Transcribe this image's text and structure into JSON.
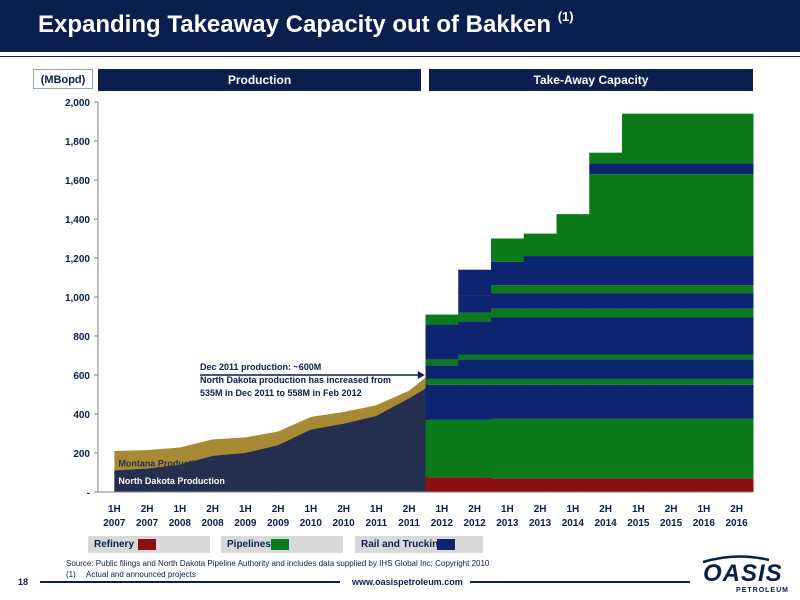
{
  "slide": {
    "title": "Expanding Takeaway Capacity out of Bakken",
    "title_note": "(1)",
    "page_number": "18",
    "website": "www.oasispetroleum.com",
    "source": "Source:  Public filings and North Dakota Pipeline Authority and includes data supplied by IHS Global Inc; Copyright 2010",
    "footnote_num": "(1)",
    "footnote_text": "Actual and announced projects",
    "logo_text": "OASIS",
    "logo_sub": "PETROLEUM"
  },
  "colors": {
    "navy": "#0b1f4e",
    "production_navy": "#242f4f",
    "montana_gold": "#a88a34",
    "refinery": "#8b0f13",
    "pipelines": "#0a7a1a",
    "rail": "#0d2470"
  },
  "chart_data": {
    "type": "area",
    "unit_label": "(MBopd)",
    "section_labels": [
      "Production",
      "Take-Away Capacity"
    ],
    "ylim": [
      0,
      2000
    ],
    "yticks": [
      0,
      200,
      400,
      600,
      800,
      1000,
      1200,
      1400,
      1600,
      1800,
      2000
    ],
    "ytick_labels": [
      "-",
      "200",
      "400",
      "600",
      "800",
      "1,000",
      "1,200",
      "1,400",
      "1,600",
      "1,800",
      "2,000"
    ],
    "categories": [
      [
        "1H",
        "2007"
      ],
      [
        "2H",
        "2007"
      ],
      [
        "1H",
        "2008"
      ],
      [
        "2H",
        "2008"
      ],
      [
        "1H",
        "2009"
      ],
      [
        "2H",
        "2009"
      ],
      [
        "1H",
        "2010"
      ],
      [
        "2H",
        "2010"
      ],
      [
        "1H",
        "2011"
      ],
      [
        "2H",
        "2011"
      ],
      [
        "1H",
        "2012"
      ],
      [
        "2H",
        "2012"
      ],
      [
        "1H",
        "2013"
      ],
      [
        "2H",
        "2013"
      ],
      [
        "1H",
        "2014"
      ],
      [
        "2H",
        "2014"
      ],
      [
        "1H",
        "2015"
      ],
      [
        "2H",
        "2015"
      ],
      [
        "1H",
        "2016"
      ],
      [
        "2H",
        "2016"
      ]
    ],
    "production": {
      "x": [
        0,
        1,
        2,
        3,
        4,
        5,
        6,
        7,
        8,
        9,
        9.6
      ],
      "north_dakota": [
        110,
        120,
        140,
        185,
        200,
        240,
        320,
        350,
        390,
        480,
        540
      ],
      "total_with_montana": [
        210,
        215,
        228,
        270,
        280,
        310,
        385,
        410,
        445,
        520,
        600
      ],
      "north_dakota_label": "North Dakota Production",
      "montana_label": "Montana Production"
    },
    "capacity_steps": [
      {
        "category": "1H 2012",
        "layers": [
          {
            "type": "refinery",
            "h": 75
          },
          {
            "type": "pipelines",
            "h": 295
          },
          {
            "type": "rail",
            "h": 180
          },
          {
            "type": "pipelines",
            "h": 30
          },
          {
            "type": "rail",
            "h": 70
          },
          {
            "type": "pipelines",
            "h": 30
          },
          {
            "type": "rail",
            "h": 180
          },
          {
            "type": "pipelines",
            "h": 50
          }
        ]
      },
      {
        "category": "2H 2012",
        "layers": [
          {
            "type": "refinery",
            "h": 75
          },
          {
            "type": "pipelines",
            "h": 295
          },
          {
            "type": "rail",
            "h": 180
          },
          {
            "type": "pipelines",
            "h": 30
          },
          {
            "type": "rail",
            "h": 100
          },
          {
            "type": "pipelines",
            "h": 25
          },
          {
            "type": "rail",
            "h": 170
          },
          {
            "type": "pipelines",
            "h": 45
          },
          {
            "type": "rail",
            "h": 90
          },
          {
            "type": "pipelines",
            "h": 0
          },
          {
            "type": "rail",
            "h": 130
          }
        ]
      },
      {
        "category": "1H 2013",
        "layers": [
          {
            "type": "refinery",
            "h": 70
          },
          {
            "type": "pipelines",
            "h": 305
          },
          {
            "type": "rail",
            "h": 175
          },
          {
            "type": "pipelines",
            "h": 30
          },
          {
            "type": "rail",
            "h": 100
          },
          {
            "type": "pipelines",
            "h": 25
          },
          {
            "type": "rail",
            "h": 190
          },
          {
            "type": "pipelines",
            "h": 45
          },
          {
            "type": "rail",
            "h": 80
          },
          {
            "type": "pipelines",
            "h": 40
          },
          {
            "type": "rail",
            "h": 120
          },
          {
            "type": "pipelines",
            "h": 120
          }
        ]
      },
      {
        "category": "2H 2013",
        "layers": [
          {
            "type": "refinery",
            "h": 70
          },
          {
            "type": "pipelines",
            "h": 305
          },
          {
            "type": "rail",
            "h": 175
          },
          {
            "type": "pipelines",
            "h": 30
          },
          {
            "type": "rail",
            "h": 100
          },
          {
            "type": "pipelines",
            "h": 25
          },
          {
            "type": "rail",
            "h": 190
          },
          {
            "type": "pipelines",
            "h": 45
          },
          {
            "type": "rail",
            "h": 80
          },
          {
            "type": "pipelines",
            "h": 40
          },
          {
            "type": "rail",
            "h": 150
          },
          {
            "type": "pipelines",
            "h": 115
          }
        ]
      },
      {
        "category": "1H 2014",
        "layers": [
          {
            "type": "refinery",
            "h": 70
          },
          {
            "type": "pipelines",
            "h": 305
          },
          {
            "type": "rail",
            "h": 175
          },
          {
            "type": "pipelines",
            "h": 30
          },
          {
            "type": "rail",
            "h": 100
          },
          {
            "type": "pipelines",
            "h": 25
          },
          {
            "type": "rail",
            "h": 190
          },
          {
            "type": "pipelines",
            "h": 45
          },
          {
            "type": "rail",
            "h": 80
          },
          {
            "type": "pipelines",
            "h": 40
          },
          {
            "type": "rail",
            "h": 150
          },
          {
            "type": "pipelines",
            "h": 215
          }
        ]
      },
      {
        "category": "2H 2014",
        "layers": [
          {
            "type": "refinery",
            "h": 70
          },
          {
            "type": "pipelines",
            "h": 305
          },
          {
            "type": "rail",
            "h": 175
          },
          {
            "type": "pipelines",
            "h": 30
          },
          {
            "type": "rail",
            "h": 100
          },
          {
            "type": "pipelines",
            "h": 25
          },
          {
            "type": "rail",
            "h": 190
          },
          {
            "type": "pipelines",
            "h": 45
          },
          {
            "type": "rail",
            "h": 80
          },
          {
            "type": "pipelines",
            "h": 40
          },
          {
            "type": "rail",
            "h": 150
          },
          {
            "type": "pipelines",
            "h": 420
          },
          {
            "type": "rail",
            "h": 55
          },
          {
            "type": "pipelines",
            "h": 55
          }
        ]
      },
      {
        "category": "1H 2015",
        "layers": [
          {
            "type": "refinery",
            "h": 70
          },
          {
            "type": "pipelines",
            "h": 305
          },
          {
            "type": "rail",
            "h": 175
          },
          {
            "type": "pipelines",
            "h": 30
          },
          {
            "type": "rail",
            "h": 100
          },
          {
            "type": "pipelines",
            "h": 25
          },
          {
            "type": "rail",
            "h": 190
          },
          {
            "type": "pipelines",
            "h": 45
          },
          {
            "type": "rail",
            "h": 80
          },
          {
            "type": "pipelines",
            "h": 40
          },
          {
            "type": "rail",
            "h": 150
          },
          {
            "type": "pipelines",
            "h": 420
          },
          {
            "type": "rail",
            "h": 55
          },
          {
            "type": "pipelines",
            "h": 255
          }
        ]
      },
      {
        "category": "2H 2015",
        "layers": [
          {
            "type": "refinery",
            "h": 70
          },
          {
            "type": "pipelines",
            "h": 305
          },
          {
            "type": "rail",
            "h": 175
          },
          {
            "type": "pipelines",
            "h": 30
          },
          {
            "type": "rail",
            "h": 100
          },
          {
            "type": "pipelines",
            "h": 25
          },
          {
            "type": "rail",
            "h": 190
          },
          {
            "type": "pipelines",
            "h": 45
          },
          {
            "type": "rail",
            "h": 80
          },
          {
            "type": "pipelines",
            "h": 40
          },
          {
            "type": "rail",
            "h": 150
          },
          {
            "type": "pipelines",
            "h": 420
          },
          {
            "type": "rail",
            "h": 55
          },
          {
            "type": "pipelines",
            "h": 255
          }
        ]
      },
      {
        "category": "1H 2016",
        "layers": [
          {
            "type": "refinery",
            "h": 70
          },
          {
            "type": "pipelines",
            "h": 305
          },
          {
            "type": "rail",
            "h": 175
          },
          {
            "type": "pipelines",
            "h": 30
          },
          {
            "type": "rail",
            "h": 100
          },
          {
            "type": "pipelines",
            "h": 25
          },
          {
            "type": "rail",
            "h": 190
          },
          {
            "type": "pipelines",
            "h": 45
          },
          {
            "type": "rail",
            "h": 80
          },
          {
            "type": "pipelines",
            "h": 40
          },
          {
            "type": "rail",
            "h": 150
          },
          {
            "type": "pipelines",
            "h": 420
          },
          {
            "type": "rail",
            "h": 55
          },
          {
            "type": "pipelines",
            "h": 255
          }
        ]
      },
      {
        "category": "2H 2016",
        "layers": [
          {
            "type": "refinery",
            "h": 70
          },
          {
            "type": "pipelines",
            "h": 305
          },
          {
            "type": "rail",
            "h": 175
          },
          {
            "type": "pipelines",
            "h": 30
          },
          {
            "type": "rail",
            "h": 100
          },
          {
            "type": "pipelines",
            "h": 25
          },
          {
            "type": "rail",
            "h": 190
          },
          {
            "type": "pipelines",
            "h": 45
          },
          {
            "type": "rail",
            "h": 80
          },
          {
            "type": "pipelines",
            "h": 40
          },
          {
            "type": "rail",
            "h": 150
          },
          {
            "type": "pipelines",
            "h": 420
          },
          {
            "type": "rail",
            "h": 55
          },
          {
            "type": "pipelines",
            "h": 255
          }
        ]
      }
    ],
    "annotation": {
      "lines": [
        "Dec 2011 production: ~600M",
        "North Dakota production has increased from",
        "535M in Dec 2011 to 558M in Feb 2012"
      ],
      "points_to": {
        "x": 9.6,
        "y": 600
      }
    },
    "legend": [
      {
        "label": "Refinery",
        "type": "refinery"
      },
      {
        "label": "Pipelines",
        "type": "pipelines"
      },
      {
        "label": "Rail and Trucking",
        "type": "rail"
      }
    ]
  }
}
